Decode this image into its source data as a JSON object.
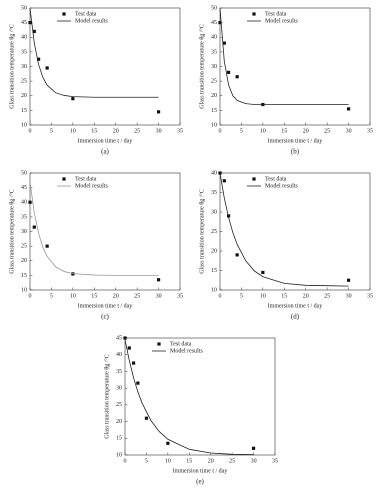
{
  "chart_data": [
    {
      "type": "scatter",
      "caption": "(a)",
      "xlabel": "Immersion time t / day",
      "ylabel": "Glass transition temperature θg /°C",
      "xlim": [
        0,
        35
      ],
      "xticks": [
        0,
        5,
        10,
        15,
        20,
        25,
        30,
        35
      ],
      "ylim": [
        10,
        50
      ],
      "yticks": [
        10,
        15,
        20,
        25,
        30,
        35,
        40,
        45,
        50
      ],
      "series": [
        {
          "name": "Test data",
          "mode": "markers",
          "color": "#111111",
          "x": [
            0,
            1,
            2,
            4,
            10,
            30
          ],
          "values": [
            45,
            42,
            32.5,
            29.5,
            19,
            14.5
          ]
        },
        {
          "name": "Model results",
          "mode": "line",
          "color": "#222222",
          "x": [
            0,
            1,
            2,
            3,
            4,
            6,
            8,
            10,
            15,
            20,
            25,
            30
          ],
          "values": [
            50,
            38,
            30.7,
            26.3,
            23.6,
            21,
            20.1,
            19.7,
            19.5,
            19.5,
            19.5,
            19.5
          ]
        }
      ]
    },
    {
      "type": "scatter",
      "caption": "(b)",
      "xlabel": "Immersion time t / day",
      "ylabel": "Glass transition temperature θg /°C",
      "xlim": [
        0,
        35
      ],
      "xticks": [
        0,
        5,
        10,
        15,
        20,
        25,
        30,
        35
      ],
      "ylim": [
        10,
        50
      ],
      "yticks": [
        10,
        15,
        20,
        25,
        30,
        35,
        40,
        45,
        50
      ],
      "series": [
        {
          "name": "Test data",
          "mode": "markers",
          "color": "#111111",
          "x": [
            0,
            1,
            2,
            4,
            10,
            30
          ],
          "values": [
            45,
            38,
            28,
            26.5,
            17,
            15.5
          ]
        },
        {
          "name": "Model results",
          "mode": "line",
          "color": "#222222",
          "x": [
            0,
            1,
            2,
            3,
            4,
            6,
            8,
            10,
            15,
            20,
            25,
            30
          ],
          "values": [
            50,
            31.8,
            23.7,
            20,
            18.4,
            17.3,
            17,
            17,
            17,
            17,
            17,
            17
          ]
        }
      ]
    },
    {
      "type": "scatter",
      "caption": "(c)",
      "xlabel": "Immersion time t / day",
      "ylabel": "Glass transition temperature θg /°C",
      "xlim": [
        0,
        35
      ],
      "xticks": [
        0,
        5,
        10,
        15,
        20,
        25,
        30,
        35
      ],
      "ylim": [
        10,
        50
      ],
      "yticks": [
        10,
        15,
        20,
        25,
        30,
        35,
        40,
        45,
        50
      ],
      "series": [
        {
          "name": "Test data",
          "mode": "markers",
          "color": "#111111",
          "x": [
            0,
            1,
            4,
            10,
            30
          ],
          "values": [
            40,
            31.5,
            25,
            15.5,
            13.5
          ]
        },
        {
          "name": "Model results",
          "mode": "line",
          "color": "#999999",
          "x": [
            0,
            1,
            2,
            3,
            4,
            6,
            8,
            10,
            15,
            20,
            25,
            30
          ],
          "values": [
            47,
            36.4,
            29.4,
            24.6,
            21.5,
            17.9,
            16.3,
            15.6,
            15.1,
            15,
            15,
            15
          ]
        }
      ]
    },
    {
      "type": "scatter",
      "caption": "(d)",
      "xlabel": "Immersion time t / day",
      "ylabel": "Glass transition temperature θg /°C",
      "xlim": [
        0,
        35
      ],
      "xticks": [
        0,
        5,
        10,
        15,
        20,
        25,
        30,
        35
      ],
      "ylim": [
        10,
        40
      ],
      "yticks": [
        10,
        15,
        20,
        25,
        30,
        35,
        40
      ],
      "series": [
        {
          "name": "Test data",
          "mode": "markers",
          "color": "#111111",
          "x": [
            0,
            1,
            2,
            4,
            10,
            30
          ],
          "values": [
            40,
            38,
            29,
            19,
            14.5,
            12.5
          ]
        },
        {
          "name": "Model results",
          "mode": "line",
          "color": "#222222",
          "x": [
            0,
            1,
            2,
            3,
            4,
            6,
            8,
            10,
            15,
            20,
            25,
            30
          ],
          "values": [
            40,
            33.6,
            28.6,
            24.7,
            21.7,
            17.5,
            14.9,
            13.4,
            11.7,
            11.2,
            11.1,
            11
          ]
        }
      ]
    },
    {
      "type": "scatter",
      "caption": "(e)",
      "xlabel": "Immersion time t / day",
      "ylabel": "Glass transition temperature θg /°C",
      "xlim": [
        0,
        35
      ],
      "xticks": [
        0,
        5,
        10,
        15,
        20,
        25,
        30,
        35
      ],
      "ylim": [
        10,
        45
      ],
      "yticks": [
        10,
        15,
        20,
        25,
        30,
        35,
        40,
        45
      ],
      "series": [
        {
          "name": "Test data",
          "mode": "markers",
          "color": "#111111",
          "x": [
            0,
            1,
            2,
            3,
            5,
            10,
            30
          ],
          "values": [
            45,
            42,
            37.5,
            31.5,
            21,
            13.5,
            12
          ]
        },
        {
          "name": "Model results",
          "mode": "line",
          "color": "#222222",
          "x": [
            0,
            1,
            2,
            3,
            4,
            6,
            8,
            10,
            15,
            20,
            25,
            30
          ],
          "values": [
            44.5,
            38.3,
            33.1,
            28.9,
            25.5,
            20.4,
            17,
            14.7,
            11.7,
            10.6,
            10.2,
            10.1
          ]
        }
      ]
    }
  ]
}
